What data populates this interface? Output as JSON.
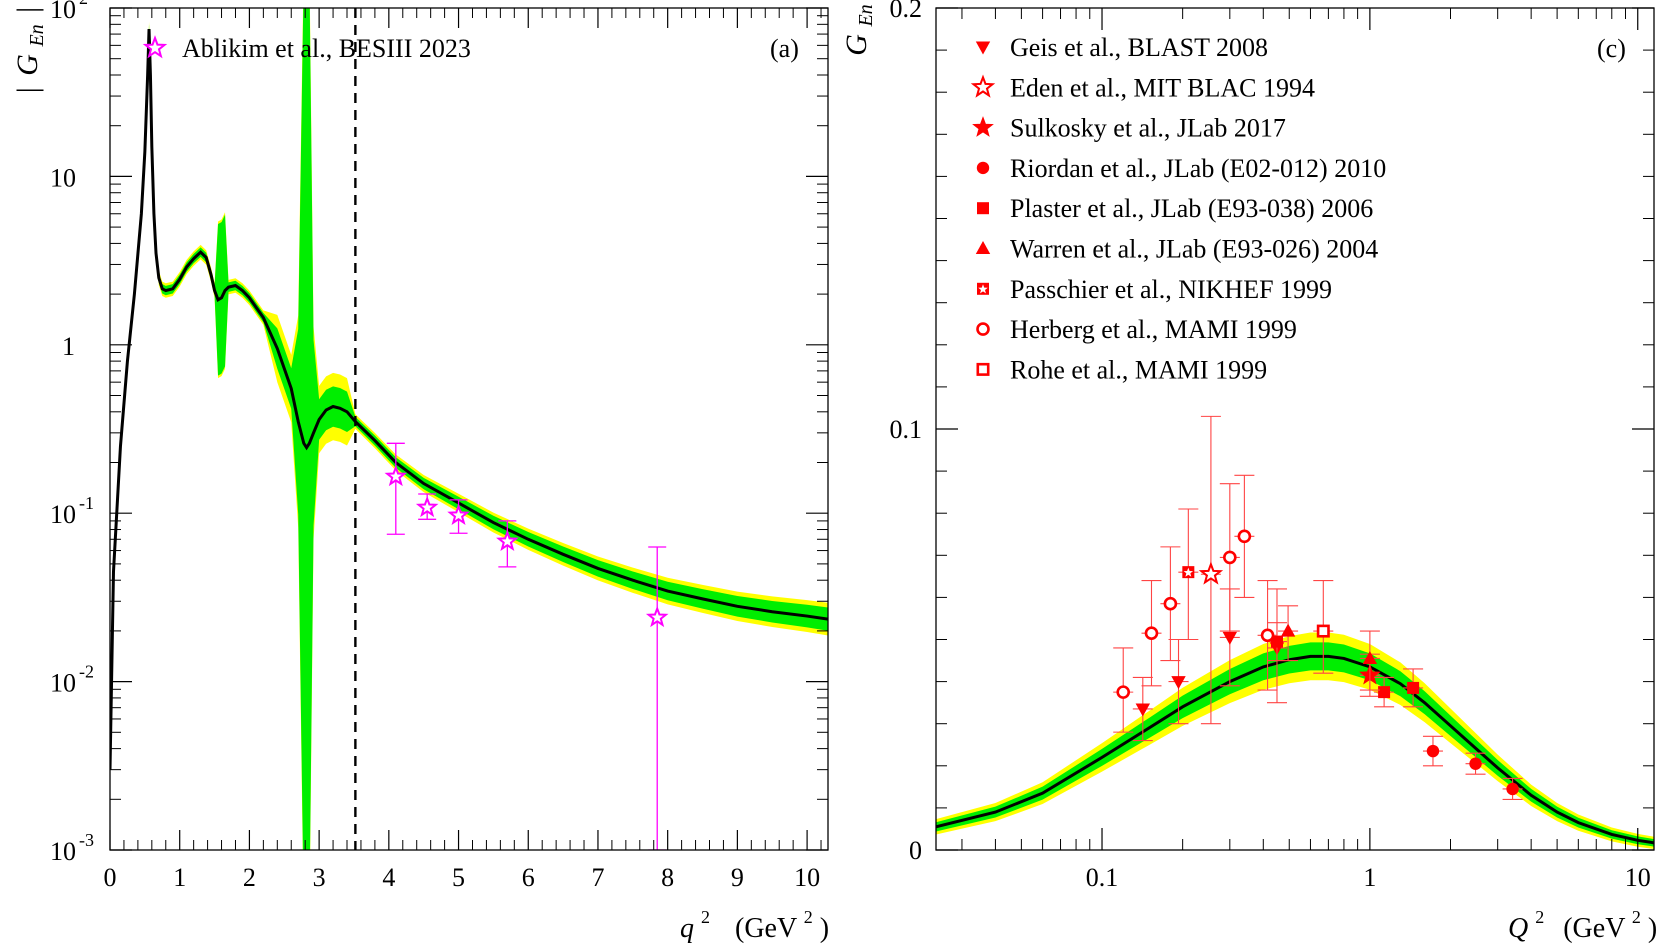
{
  "chart_data": [
    {
      "panel": "(a)",
      "type": "line",
      "xlabel": "q",
      "xlabel_sup": "2",
      "xunit": "(GeV",
      "xunit_sup": "2",
      "xunit_close": ")",
      "ylabel_left": "|",
      "ylabel_main": "G",
      "ylabel_sub": "En",
      "ylabel_right": "|",
      "xlim": [
        0,
        10.3
      ],
      "ylim_log10": [
        -3,
        2
      ],
      "yscale": "log",
      "x_ticks": [
        "0",
        "1",
        "2",
        "3",
        "4",
        "5",
        "6",
        "7",
        "8",
        "9",
        "10"
      ],
      "y_ticks": [
        {
          "exp": 2,
          "base": "10",
          "sup": "2"
        },
        {
          "exp": 1,
          "base": "10",
          "sup": ""
        },
        {
          "exp": 0,
          "base": "1",
          "sup": ""
        },
        {
          "exp": -1,
          "base": "10",
          "sup": "-1"
        },
        {
          "exp": -2,
          "base": "10",
          "sup": "-2"
        },
        {
          "exp": -3,
          "base": "10",
          "sup": "-3"
        }
      ],
      "vline_x": 3.52,
      "band_colors": {
        "outer": "#ffff00",
        "inner": "#00ee00",
        "curve": "#000000"
      },
      "curve": {
        "x": [
          0.0,
          0.05,
          0.15,
          0.25,
          0.35,
          0.45,
          0.5,
          0.54,
          0.56,
          0.58,
          0.6,
          0.63,
          0.66,
          0.7,
          0.75,
          0.8,
          0.9,
          1.0,
          1.1,
          1.2,
          1.3,
          1.38,
          1.45,
          1.5,
          1.55,
          1.6,
          1.65,
          1.7,
          1.8,
          1.9,
          2.0,
          2.2,
          2.4,
          2.6,
          2.7,
          2.78,
          2.82,
          2.86,
          2.92,
          3.0,
          3.1,
          3.2,
          3.3,
          3.4,
          3.52,
          3.8,
          4.1,
          4.5,
          5.0,
          5.5,
          6.0,
          6.5,
          7.0,
          7.5,
          8.0,
          8.5,
          9.0,
          9.5,
          10.0,
          10.3
        ],
        "y": [
          0.003,
          0.045,
          0.25,
          0.8,
          2.0,
          6.0,
          14.0,
          40.0,
          75.0,
          40.0,
          15.0,
          6.0,
          3.5,
          2.5,
          2.15,
          2.1,
          2.15,
          2.45,
          2.9,
          3.25,
          3.55,
          3.3,
          2.6,
          2.1,
          1.85,
          1.9,
          2.1,
          2.2,
          2.25,
          2.1,
          1.9,
          1.45,
          0.95,
          0.55,
          0.35,
          0.26,
          0.245,
          0.26,
          0.3,
          0.36,
          0.41,
          0.43,
          0.42,
          0.4,
          0.35,
          0.27,
          0.2,
          0.15,
          0.115,
          0.088,
          0.07,
          0.057,
          0.047,
          0.04,
          0.0345,
          0.031,
          0.028,
          0.026,
          0.0245,
          0.0235
        ]
      },
      "series": [
        {
          "name": "Ablikim et al., BESIII 2023",
          "marker": "open-star",
          "color": "#ff00ff",
          "x": [
            4.1,
            4.55,
            5.0,
            5.7,
            7.85
          ],
          "y": [
            0.165,
            0.108,
            0.097,
            0.068,
            0.024
          ],
          "ylo": [
            0.075,
            0.092,
            0.076,
            0.048,
            0.001
          ],
          "yhi": [
            0.26,
            0.13,
            0.12,
            0.09,
            0.063
          ]
        }
      ]
    },
    {
      "panel": "(c)",
      "type": "scatter",
      "xlabel": "Q",
      "xlabel_sup": "2",
      "xunit": "(GeV",
      "xunit_sup": "2",
      "xunit_close": ")",
      "ylabel_main": "G",
      "ylabel_sub": "En",
      "xscale": "log",
      "xlim": [
        0.024,
        11.5
      ],
      "ylim": [
        0,
        0.2
      ],
      "x_ticks": [
        {
          "v": 0.1,
          "label": "0.1"
        },
        {
          "v": 1,
          "label": "1"
        },
        {
          "v": 10,
          "label": "10"
        }
      ],
      "y_ticks": [
        {
          "v": 0,
          "label": "0"
        },
        {
          "v": 0.1,
          "label": "0.1"
        },
        {
          "v": 0.2,
          "label": "0.2"
        }
      ],
      "band_colors": {
        "outer": "#ffff00",
        "inner": "#00ee00",
        "curve": "#000000"
      },
      "curve": {
        "x": [
          0.024,
          0.04,
          0.06,
          0.1,
          0.15,
          0.2,
          0.3,
          0.4,
          0.5,
          0.6,
          0.7,
          0.8,
          1.0,
          1.3,
          1.6,
          2.0,
          2.5,
          3.0,
          4.0,
          5.0,
          6.0,
          8.0,
          10.0,
          11.5
        ],
        "y": [
          0.0055,
          0.009,
          0.0135,
          0.022,
          0.029,
          0.034,
          0.04,
          0.0435,
          0.0452,
          0.046,
          0.046,
          0.0455,
          0.0435,
          0.0395,
          0.035,
          0.0295,
          0.024,
          0.0195,
          0.013,
          0.009,
          0.0065,
          0.0037,
          0.0023,
          0.0017
        ]
      },
      "series": [
        {
          "name": "Geis et al., BLAST 2008",
          "marker": "filled-down-triangle",
          "color": "#ff0000",
          "x": [
            0.142,
            0.193,
            0.3,
            0.45
          ],
          "y": [
            0.0335,
            0.04,
            0.0505,
            0.048
          ],
          "ylo": [
            0.026,
            0.03,
            0.039,
            0.035
          ],
          "yhi": [
            0.041,
            0.05,
            0.062,
            0.062
          ]
        },
        {
          "name": "Eden et al., MIT BLAC 1994",
          "marker": "open-star",
          "color": "#ff0000",
          "x": [
            0.255
          ],
          "y": [
            0.0655
          ],
          "ylo": [
            0.03
          ],
          "yhi": [
            0.103
          ]
        },
        {
          "name": "Sulkosky et al., JLab 2017",
          "marker": "filled-star",
          "color": "#ff0000",
          "x": [
            1.0
          ],
          "y": [
            0.0415
          ],
          "ylo": [
            0.0365
          ],
          "yhi": [
            0.0465
          ]
        },
        {
          "name": "Riordan et al., JLab (E02-012) 2010",
          "marker": "filled-circle",
          "color": "#ff0000",
          "x": [
            1.72,
            2.48,
            3.41
          ],
          "y": [
            0.0235,
            0.0205,
            0.0145
          ],
          "ylo": [
            0.02,
            0.018,
            0.012
          ],
          "yhi": [
            0.027,
            0.023,
            0.017
          ]
        },
        {
          "name": "Plaster et al., JLab (E93-038) 2006",
          "marker": "filled-square",
          "color": "#ff0000",
          "x": [
            0.45,
            1.13,
            1.45
          ],
          "y": [
            0.0495,
            0.0375,
            0.0385
          ],
          "ylo": [
            0.045,
            0.034,
            0.034
          ],
          "yhi": [
            0.054,
            0.041,
            0.043
          ]
        },
        {
          "name": "Warren et al., JLab (E93-026) 2004",
          "marker": "filled-up-triangle",
          "color": "#ff0000",
          "x": [
            0.495,
            1.0
          ],
          "y": [
            0.052,
            0.0455
          ],
          "ylo": [
            0.045,
            0.038
          ],
          "yhi": [
            0.058,
            0.052
          ]
        },
        {
          "name": "Passchier et al., NIKHEF 1999",
          "marker": "square-with-star",
          "color": "#ff0000",
          "x": [
            0.21
          ],
          "y": [
            0.066
          ],
          "ylo": [
            0.05
          ],
          "yhi": [
            0.081
          ]
        },
        {
          "name": "Herberg et al., MAMI 1999",
          "marker": "open-circle",
          "color": "#ff0000",
          "x": [
            0.12,
            0.153,
            0.18,
            0.3,
            0.34,
            0.415
          ],
          "y": [
            0.0375,
            0.0515,
            0.0585,
            0.0695,
            0.0745,
            0.051
          ],
          "ylo": [
            0.028,
            0.039,
            0.045,
            0.052,
            0.06,
            0.038
          ],
          "yhi": [
            0.048,
            0.064,
            0.072,
            0.087,
            0.089,
            0.064
          ]
        },
        {
          "name": "Rohe et al., MAMI 1999",
          "marker": "open-square",
          "color": "#ff0000",
          "x": [
            0.67
          ],
          "y": [
            0.052
          ],
          "ylo": [
            0.042
          ],
          "yhi": [
            0.064
          ]
        }
      ]
    }
  ]
}
